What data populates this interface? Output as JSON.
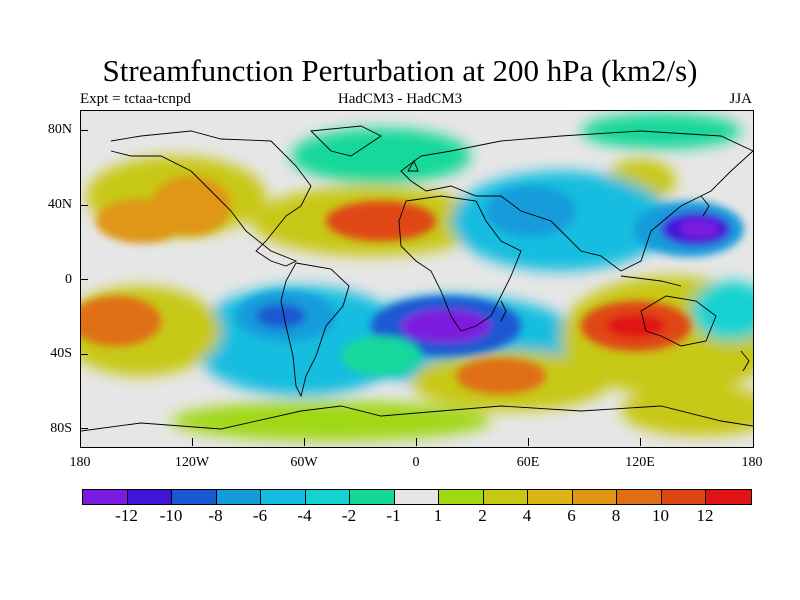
{
  "title": "Streamfunction Perturbation at 200 hPa (km2/s)",
  "subtitle_left": "Expt = tctaa-tcnpd",
  "subtitle_center": "HadCM3 - HadCM3",
  "subtitle_right": "JJA",
  "y_labels": [
    "80N",
    "40N",
    "0",
    "40S",
    "80S"
  ],
  "x_labels": [
    "180",
    "120W",
    "60W",
    "0",
    "60E",
    "120E",
    "180"
  ],
  "colorbar": {
    "colors": [
      "#7d1adf",
      "#4114d8",
      "#1a58d2",
      "#149bdb",
      "#14bde0",
      "#14d2d2",
      "#14d89a",
      "#e6e6e6",
      "#a0d814",
      "#c8c814",
      "#dcb414",
      "#e09614",
      "#e06e14",
      "#e04614",
      "#e01414"
    ],
    "labels": [
      "-12",
      "-10",
      "-8",
      "-6",
      "-4",
      "-2",
      "-1",
      "1",
      "2",
      "4",
      "6",
      "8",
      "10",
      "12"
    ]
  },
  "map_data": {
    "projection": "equirectangular",
    "lon_range": [
      -180,
      180
    ],
    "lat_range": [
      -90,
      90
    ],
    "variable": "streamfunction perturbation",
    "units": "km2/s"
  }
}
